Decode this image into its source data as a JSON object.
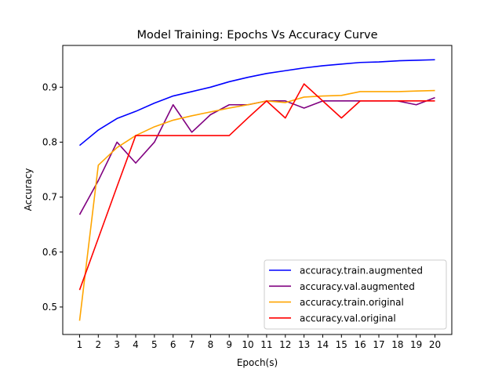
{
  "chart_data": {
    "type": "line",
    "title": "Model Training: Epochs Vs Accuracy Curve",
    "xlabel": "Epoch(s)",
    "ylabel": "Accuracy",
    "x": [
      1,
      2,
      3,
      4,
      5,
      6,
      7,
      8,
      9,
      10,
      11,
      12,
      13,
      14,
      15,
      16,
      17,
      18,
      19,
      20
    ],
    "xlim": [
      0.1,
      20.9
    ],
    "ylim": [
      0.45,
      0.976
    ],
    "xticks": [
      1,
      2,
      3,
      4,
      5,
      6,
      7,
      8,
      9,
      10,
      11,
      12,
      13,
      14,
      15,
      16,
      17,
      18,
      19,
      20
    ],
    "yticks": [
      0.5,
      0.6,
      0.7,
      0.8,
      0.9
    ],
    "ytick_labels": [
      "0.5",
      "0.6",
      "0.7",
      "0.8",
      "0.9"
    ],
    "grid": false,
    "legend_position": "lower-right",
    "series": [
      {
        "name": "accuracy.train.augmented",
        "color": "#0000ff",
        "values": [
          0.794,
          0.822,
          0.843,
          0.856,
          0.871,
          0.884,
          0.892,
          0.9,
          0.91,
          0.918,
          0.925,
          0.93,
          0.935,
          0.939,
          0.942,
          0.945,
          0.946,
          0.948,
          0.949,
          0.95
        ]
      },
      {
        "name": "accuracy.val.augmented",
        "color": "#800080",
        "values": [
          0.668,
          0.73,
          0.8,
          0.762,
          0.8,
          0.868,
          0.818,
          0.85,
          0.868,
          0.868,
          0.875,
          0.875,
          0.862,
          0.875,
          0.875,
          0.875,
          0.875,
          0.875,
          0.868,
          0.881
        ]
      },
      {
        "name": "accuracy.train.original",
        "color": "#ffa500",
        "values": [
          0.475,
          0.758,
          0.79,
          0.812,
          0.828,
          0.84,
          0.848,
          0.855,
          0.862,
          0.868,
          0.875,
          0.872,
          0.882,
          0.884,
          0.885,
          0.892,
          0.892,
          0.892,
          0.893,
          0.894
        ]
      },
      {
        "name": "accuracy.val.original",
        "color": "#ff0000",
        "values": [
          0.531,
          0.625,
          0.719,
          0.812,
          0.812,
          0.812,
          0.812,
          0.812,
          0.812,
          0.844,
          0.875,
          0.844,
          0.906,
          0.875,
          0.844,
          0.875,
          0.875,
          0.875,
          0.875,
          0.875
        ]
      }
    ]
  }
}
